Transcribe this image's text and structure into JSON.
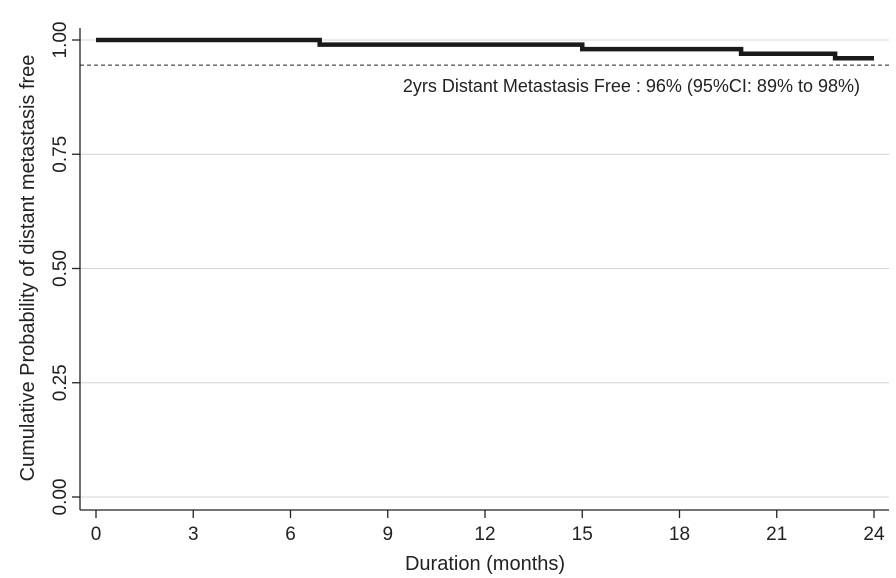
{
  "chart_data": {
    "type": "line",
    "xlabel": "Duration (months)",
    "ylabel": "Cumulative Probability of distant metastasis free",
    "xlim": [
      0,
      24
    ],
    "ylim": [
      0,
      1
    ],
    "x_ticks": [
      0,
      3,
      6,
      9,
      12,
      15,
      18,
      21,
      24
    ],
    "y_ticks": [
      0,
      0.25,
      0.5,
      0.75,
      1.0
    ],
    "x_tick_labels": [
      "0",
      "3",
      "6",
      "9",
      "12",
      "15",
      "18",
      "21",
      "24"
    ],
    "y_tick_labels": [
      "0.00",
      "0.25",
      "0.50",
      "0.75",
      "1.00"
    ],
    "grid": "horizontal",
    "series": [
      {
        "step": "post",
        "x": [
          0,
          6.9,
          15.0,
          19.9,
          22.8,
          24
        ],
        "y": [
          1.0,
          0.99,
          0.98,
          0.97,
          0.96,
          0.96
        ],
        "color": "#1a1a1a"
      }
    ],
    "reference_line": {
      "y": 0.945,
      "style": "dashed"
    },
    "annotation": "2yrs Distant Metastasis Free : 96% (95%CI: 89% to 98%)"
  }
}
